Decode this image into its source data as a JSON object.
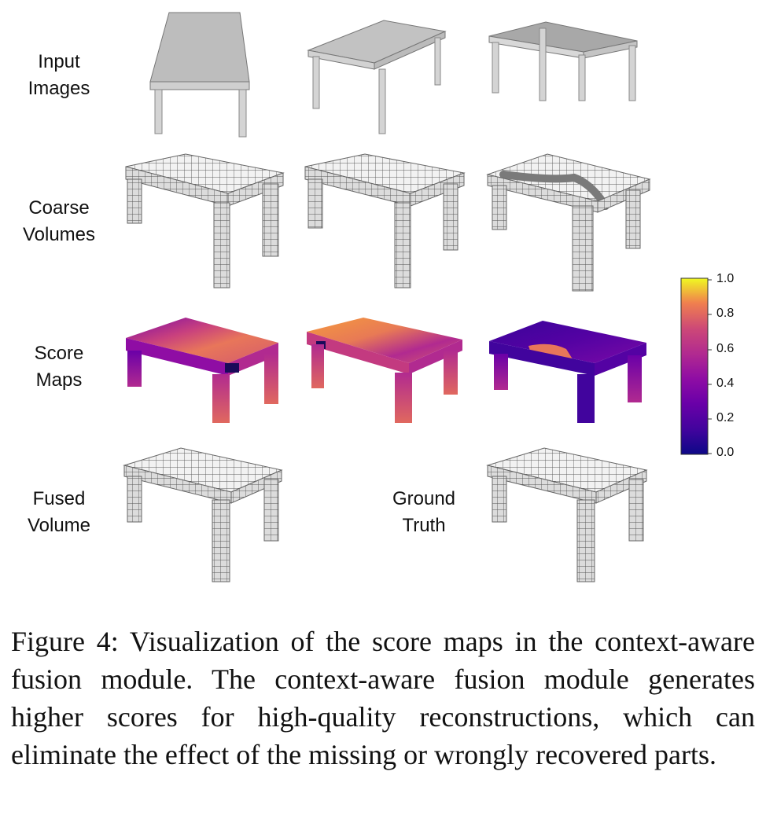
{
  "rows": [
    {
      "id": "input",
      "label_line1": "Input",
      "label_line2": "Images"
    },
    {
      "id": "coarse",
      "label_line1": "Coarse",
      "label_line2": "Volumes"
    },
    {
      "id": "score",
      "label_line1": "Score",
      "label_line2": "Maps"
    },
    {
      "id": "fused",
      "label_line1": "Fused",
      "label_line2": "Volume"
    }
  ],
  "ground_truth": {
    "label_line1": "Ground",
    "label_line2": "Truth"
  },
  "colorbar": {
    "colormap": "plasma",
    "ticks": [
      "1.0",
      "0.8",
      "0.6",
      "0.4",
      "0.2",
      "0.0"
    ]
  },
  "caption": "Figure 4: Visualization of the score maps in the context-aware fusion module. The context-aware fusion module generates higher scores for high-quality reconstructions, which can eliminate the effect of the missing or wrongly recovered parts."
}
